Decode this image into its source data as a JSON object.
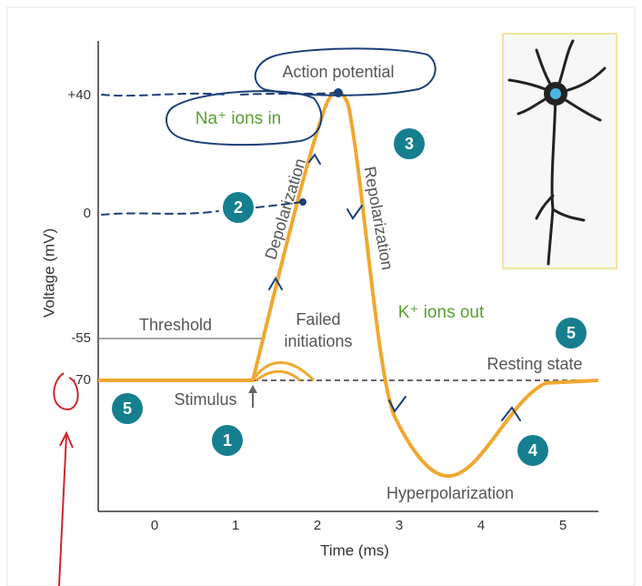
{
  "axes": {
    "y_label": "Voltage (mV)",
    "x_label": "Time (ms)",
    "y_ticks": [
      "+40",
      "0",
      "-55",
      "-70"
    ],
    "x_ticks": [
      "0",
      "1",
      "2",
      "3",
      "4",
      "5"
    ]
  },
  "labels": {
    "action_potential": "Action potential",
    "na_ions": "Na⁺ ions in",
    "depolarization": "Depolarization",
    "repolarization": "Repolarization",
    "threshold": "Threshold",
    "failed_line1": "Failed",
    "failed_line2": "initiations",
    "k_ions": "K⁺ ions out",
    "resting_state": "Resting state",
    "stimulus": "Stimulus",
    "hyperpolarization": "Hyperpolarization"
  },
  "steps": [
    "1",
    "2",
    "3",
    "4",
    "5",
    "5"
  ]
}
